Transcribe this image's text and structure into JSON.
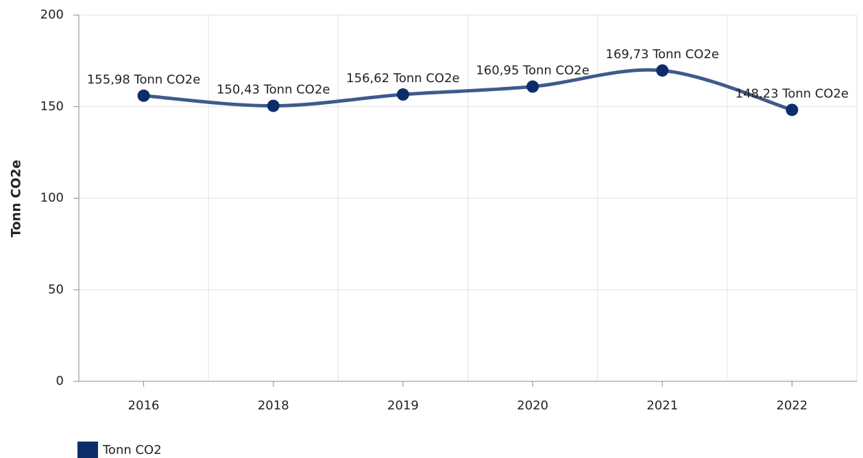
{
  "chart_data": {
    "type": "line",
    "y_axis_label": "Tonn CO2e",
    "categories": [
      "2016",
      "2018",
      "2019",
      "2020",
      "2021",
      "2022"
    ],
    "series": [
      {
        "name": "Tonn CO2",
        "color": "#3e5b8c",
        "marker_color": "#0b2e6b",
        "values": [
          155.98,
          150.43,
          156.62,
          160.95,
          169.73,
          148.23
        ],
        "value_labels": [
          "155,98 Tonn CO2e",
          "150,43 Tonn CO2e",
          "156,62 Tonn CO2e",
          "160,95 Tonn CO2e",
          "169,73 Tonn CO2e",
          "148,23 Tonn CO2e"
        ]
      }
    ],
    "ylim": [
      0,
      200
    ],
    "yticks": [
      0,
      50,
      100,
      150,
      200
    ],
    "grid": true,
    "smooth": true,
    "legend": "bottom-left"
  }
}
